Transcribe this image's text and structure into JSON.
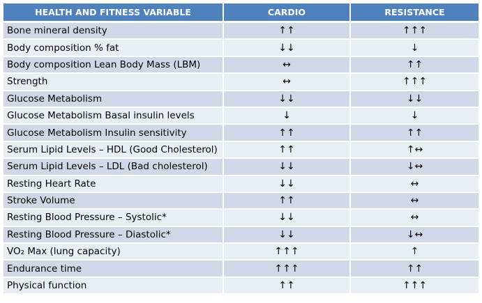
{
  "table": {
    "headers": [
      "HEALTH AND FITNESS VARIABLE",
      "CARDIO",
      "RESISTANCE"
    ],
    "rows": [
      {
        "variable": "Bone mineral density",
        "cardio": "↑↑",
        "resistance": "↑↑↑"
      },
      {
        "variable": "Body composition % fat",
        "cardio": "↓↓",
        "resistance": "↓"
      },
      {
        "variable": "Body composition Lean Body Mass (LBM)",
        "cardio": "↔",
        "resistance": "↑↑"
      },
      {
        "variable": "Strength",
        "cardio": "↔",
        "resistance": "↑↑↑"
      },
      {
        "variable": "Glucose Metabolism",
        "cardio": "↓↓",
        "resistance": "↓↓"
      },
      {
        "variable": "Glucose Metabolism Basal insulin levels",
        "cardio": "↓",
        "resistance": "↓"
      },
      {
        "variable": "Glucose Metabolism Insulin sensitivity",
        "cardio": "↑↑",
        "resistance": "↑↑"
      },
      {
        "variable": "Serum Lipid Levels – HDL (Good Cholesterol)",
        "cardio": "↑↑",
        "resistance": "↑↔"
      },
      {
        "variable": "Serum Lipid Levels – LDL (Bad cholesterol)",
        "cardio": "↓↓",
        "resistance": "↓↔"
      },
      {
        "variable": "Resting Heart Rate",
        "cardio": "↓↓",
        "resistance": "↔"
      },
      {
        "variable": "Stroke Volume",
        "cardio": "↑↑",
        "resistance": "↔"
      },
      {
        "variable": "Resting Blood Pressure – Systolic*",
        "cardio": "↓↓",
        "resistance": "↔"
      },
      {
        "variable": "Resting Blood Pressure – Diastolic*",
        "cardio": "↓↓",
        "resistance": "↓↔"
      },
      {
        "variable": "VO₂ Max (lung capacity)",
        "cardio": "↑↑↑",
        "resistance": "↑"
      },
      {
        "variable": "Endurance time",
        "cardio": "↑↑↑",
        "resistance": "↑↑"
      },
      {
        "variable": "Physical function",
        "cardio": "↑↑",
        "resistance": "↑↑↑"
      }
    ]
  },
  "colors": {
    "header_bg": "#4f81bd",
    "header_text": "#ffffff",
    "row_band_dark": "#d0d8e8",
    "row_band_light": "#e9edf4"
  }
}
